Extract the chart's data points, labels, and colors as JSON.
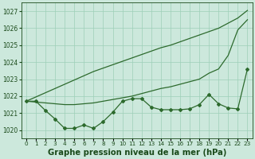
{
  "title": "Graphe pression niveau de la mer (hPa)",
  "xlabel_hours": [
    0,
    1,
    2,
    3,
    4,
    5,
    6,
    7,
    8,
    9,
    10,
    11,
    12,
    13,
    14,
    15,
    16,
    17,
    18,
    19,
    20,
    21,
    22,
    23
  ],
  "line1": [
    1021.7,
    1021.95,
    1022.2,
    1022.45,
    1022.7,
    1022.95,
    1023.2,
    1023.45,
    1023.65,
    1023.85,
    1024.05,
    1024.25,
    1024.45,
    1024.65,
    1024.85,
    1025.0,
    1025.2,
    1025.4,
    1025.6,
    1025.8,
    1026.0,
    1026.3,
    1026.6,
    1027.05
  ],
  "line2": [
    1021.7,
    1021.65,
    1021.6,
    1021.55,
    1021.5,
    1021.5,
    1021.55,
    1021.6,
    1021.7,
    1021.8,
    1021.9,
    1022.0,
    1022.15,
    1022.3,
    1022.45,
    1022.55,
    1022.7,
    1022.85,
    1023.0,
    1023.35,
    1023.6,
    1024.4,
    1025.9,
    1026.5
  ],
  "line3": [
    1021.7,
    1021.7,
    1021.15,
    1020.65,
    1020.1,
    1020.1,
    1020.3,
    1020.1,
    1020.5,
    1021.05,
    1021.7,
    1021.85,
    1021.85,
    1021.35,
    1021.2,
    1021.2,
    1021.2,
    1021.25,
    1021.5,
    1022.1,
    1021.55,
    1021.3,
    1021.25,
    1023.6
  ],
  "ylim": [
    1019.5,
    1027.5
  ],
  "yticks": [
    1020,
    1021,
    1022,
    1023,
    1024,
    1025,
    1026,
    1027
  ],
  "line_color": "#2d6a2d",
  "bg_color": "#cce8dc",
  "grid_color": "#9ecfb8",
  "text_color": "#1a4a1a",
  "title_fontsize": 7.2,
  "tick_fontsize": 5.5
}
